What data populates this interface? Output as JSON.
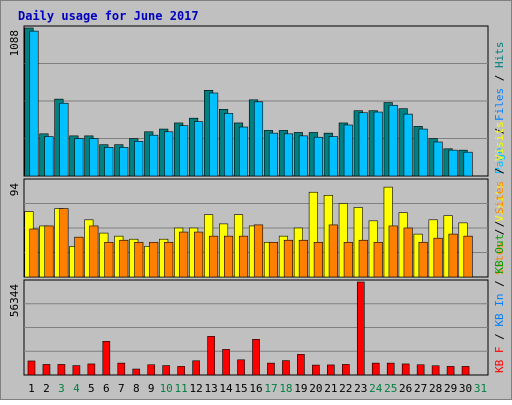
{
  "chart_data": {
    "type": "bar",
    "title": "Daily usage for June 2017",
    "colors": {
      "background": "#c0c0c0",
      "border": "#808080",
      "grid": "#808080",
      "title": "#0000c0",
      "pages": "#00c0ff",
      "files": "#0080ff",
      "hits": "#008080",
      "visits": "#ffff00",
      "sites": "#ff8000",
      "kbin": "#0080ff",
      "kbout": "#00a000",
      "kbf": "#ff0000",
      "weekday": "#000000",
      "weekend": "#008040"
    },
    "x": [
      "1",
      "2",
      "3",
      "4",
      "5",
      "6",
      "7",
      "8",
      "9",
      "10",
      "11",
      "12",
      "13",
      "14",
      "15",
      "16",
      "17",
      "18",
      "19",
      "20",
      "21",
      "22",
      "23",
      "24",
      "25",
      "26",
      "27",
      "28",
      "29",
      "30",
      "31"
    ],
    "weekend_days": [
      "3",
      "4",
      "10",
      "11",
      "17",
      "18",
      "24",
      "25",
      "31"
    ],
    "panels": [
      {
        "name": "hits-files-pages",
        "ymax_label": "1088",
        "ymax": 1088,
        "ylabel_parts": [
          {
            "text": "Pages",
            "color": "#00c0ff"
          },
          {
            "text": " / ",
            "color": "#000000"
          },
          {
            "text": "Files",
            "color": "#0080ff"
          },
          {
            "text": " / ",
            "color": "#000000"
          },
          {
            "text": "Hits",
            "color": "#008080"
          }
        ],
        "series": [
          {
            "key": "hits",
            "values": [
              1088,
              310,
              565,
              295,
              295,
              230,
              230,
              275,
              325,
              345,
              390,
              425,
              630,
              490,
              390,
              560,
              335,
              335,
              320,
              320,
              315,
              390,
              480,
              480,
              540,
              495,
              365,
              275,
              200,
              190,
              0
            ]
          },
          {
            "key": "pages",
            "values": [
              1065,
              290,
              535,
              275,
              275,
              210,
              210,
              255,
              300,
              325,
              370,
              400,
              610,
              460,
              360,
              545,
              315,
              310,
              295,
              285,
              290,
              375,
              465,
              470,
              520,
              455,
              345,
              250,
              190,
              175,
              0
            ]
          }
        ]
      },
      {
        "name": "visits-sites",
        "ymax_label": "94",
        "ymax": 94,
        "ylabel_parts": [
          {
            "text": "Sites",
            "color": "#ff8000"
          },
          {
            "text": " / ",
            "color": "#000000"
          },
          {
            "text": "Visits",
            "color": "#ffff00"
          }
        ],
        "series": [
          {
            "key": "visits",
            "values": [
              64,
              50,
              67,
              30,
              56,
              43,
              40,
              37,
              30,
              37,
              48,
              48,
              61,
              52,
              61,
              50,
              34,
              40,
              48,
              83,
              80,
              72,
              68,
              55,
              88,
              63,
              42,
              56,
              60,
              53,
              0
            ]
          },
          {
            "key": "sites",
            "values": [
              47,
              50,
              67,
              39,
              50,
              34,
              36,
              34,
              34,
              34,
              44,
              44,
              40,
              40,
              40,
              51,
              34,
              36,
              36,
              34,
              51,
              34,
              36,
              34,
              50,
              48,
              34,
              38,
              42,
              40,
              0
            ]
          }
        ]
      },
      {
        "name": "kbytes",
        "ymax_label": "56344",
        "ymax": 56344,
        "ylabel_parts": [
          {
            "text": "KB F",
            "color": "#ff0000"
          },
          {
            "text": " / ",
            "color": "#000000"
          },
          {
            "text": "KB In",
            "color": "#0080ff"
          },
          {
            "text": " / ",
            "color": "#000000"
          },
          {
            "text": "KB Out",
            "color": "#00a000"
          },
          {
            "text": " / ",
            "color": "#000000"
          },
          {
            "text": "Sites",
            "color": "#ff8000"
          },
          {
            "text": " / ",
            "color": "#000000"
          },
          {
            "text": "Visits",
            "color": "#ffff00"
          }
        ],
        "series": [
          {
            "key": "kbf",
            "values": [
              8500,
              6400,
              6400,
              5700,
              6700,
              20400,
              7200,
              3600,
              6200,
              5700,
              5200,
              8600,
              23400,
              15500,
              9200,
              21600,
              7200,
              8700,
              12500,
              6000,
              6100,
              6400,
              56344,
              7200,
              7200,
              6700,
              6200,
              5600,
              5200,
              5200,
              0
            ]
          }
        ]
      }
    ]
  }
}
